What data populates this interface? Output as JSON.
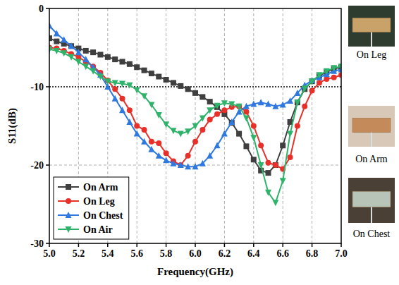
{
  "chart_data": {
    "type": "line",
    "x_label": "Frequency(GHz)",
    "y_label": "S11(dB)",
    "x": [
      5.0,
      5.05,
      5.1,
      5.15,
      5.2,
      5.25,
      5.3,
      5.35,
      5.4,
      5.45,
      5.5,
      5.55,
      5.6,
      5.65,
      5.7,
      5.75,
      5.8,
      5.85,
      5.9,
      5.95,
      6.0,
      6.05,
      6.1,
      6.15,
      6.2,
      6.25,
      6.3,
      6.35,
      6.4,
      6.45,
      6.5,
      6.55,
      6.6,
      6.65,
      6.7,
      6.75,
      6.8,
      6.85,
      6.9,
      6.95,
      7.0
    ],
    "series": [
      {
        "name": "On Arm",
        "color": "#3f3f3f",
        "marker": "square",
        "values": [
          -3.8,
          -4.2,
          -4.5,
          -4.8,
          -5.1,
          -5.4,
          -5.6,
          -5.9,
          -6.2,
          -6.5,
          -6.8,
          -7.1,
          -7.5,
          -7.9,
          -8.3,
          -8.7,
          -9.1,
          -9.5,
          -9.9,
          -10.3,
          -10.8,
          -11.3,
          -11.9,
          -12.6,
          -13.5,
          -14.6,
          -16.0,
          -17.6,
          -19.3,
          -20.7,
          -21.0,
          -20.0,
          -17.5,
          -14.5,
          -12.0,
          -10.3,
          -9.3,
          -8.6,
          -8.1,
          -7.7,
          -7.5
        ]
      },
      {
        "name": "On Leg",
        "color": "#e8302a",
        "marker": "circle",
        "values": [
          -5.0,
          -5.1,
          -5.4,
          -5.8,
          -6.2,
          -6.8,
          -7.4,
          -8.2,
          -9.2,
          -10.3,
          -11.5,
          -13.0,
          -15.0,
          -15.5,
          -17.0,
          -17.2,
          -18.5,
          -19.5,
          -20.0,
          -18.8,
          -17.0,
          -15.5,
          -14.2,
          -13.5,
          -13.0,
          -12.6,
          -12.5,
          -13.2,
          -15.0,
          -17.5,
          -19.7,
          -20.0,
          -20.5,
          -19.0,
          -15.0,
          -12.5,
          -10.5,
          -9.5,
          -9.0,
          -8.8,
          -8.5
        ]
      },
      {
        "name": "On Chest",
        "color": "#2f78e0",
        "marker": "triangle",
        "values": [
          -2.2,
          -3.2,
          -4.0,
          -4.8,
          -5.6,
          -6.5,
          -7.5,
          -8.5,
          -10.0,
          -11.5,
          -13.0,
          -14.5,
          -16.0,
          -17.0,
          -18.0,
          -18.8,
          -19.4,
          -19.8,
          -20.0,
          -20.2,
          -20.2,
          -19.8,
          -18.8,
          -17.5,
          -16.0,
          -14.5,
          -13.2,
          -12.5,
          -12.2,
          -12.0,
          -12.2,
          -12.5,
          -12.3,
          -11.8,
          -10.8,
          -9.8,
          -9.2,
          -8.8,
          -8.4,
          -8.0,
          -7.8
        ]
      },
      {
        "name": "On Air",
        "color": "#2fb36a",
        "marker": "triangle-down",
        "values": [
          -5.2,
          -5.4,
          -5.7,
          -6.2,
          -6.8,
          -7.4,
          -8.0,
          -8.7,
          -9.3,
          -9.5,
          -9.6,
          -9.8,
          -10.4,
          -11.2,
          -12.3,
          -13.6,
          -14.8,
          -15.6,
          -16.0,
          -15.7,
          -15.0,
          -14.0,
          -13.0,
          -12.4,
          -12.1,
          -12.2,
          -12.5,
          -14.0,
          -16.5,
          -20.0,
          -23.5,
          -24.8,
          -22.0,
          -16.0,
          -12.0,
          -10.2,
          -9.3,
          -8.5,
          -8.0,
          -7.6,
          -7.4
        ]
      }
    ],
    "xlim": [
      5.0,
      7.0
    ],
    "xticks": [
      {
        "value": 5.0,
        "label": "5.0"
      },
      5.2,
      5.4,
      5.6,
      5.8,
      {
        "value": 6.0,
        "label": "6.0"
      },
      6.2,
      6.4,
      6.6,
      6.8,
      {
        "value": 7.0,
        "label": "7.0"
      }
    ],
    "ylim": [
      -30,
      0
    ],
    "yticks": [
      -30,
      -20,
      -10,
      0
    ],
    "reference_y": -10,
    "grid": true,
    "legend": "lower left",
    "annotations": [
      "On Leg",
      "On Arm",
      "On Chest"
    ]
  }
}
